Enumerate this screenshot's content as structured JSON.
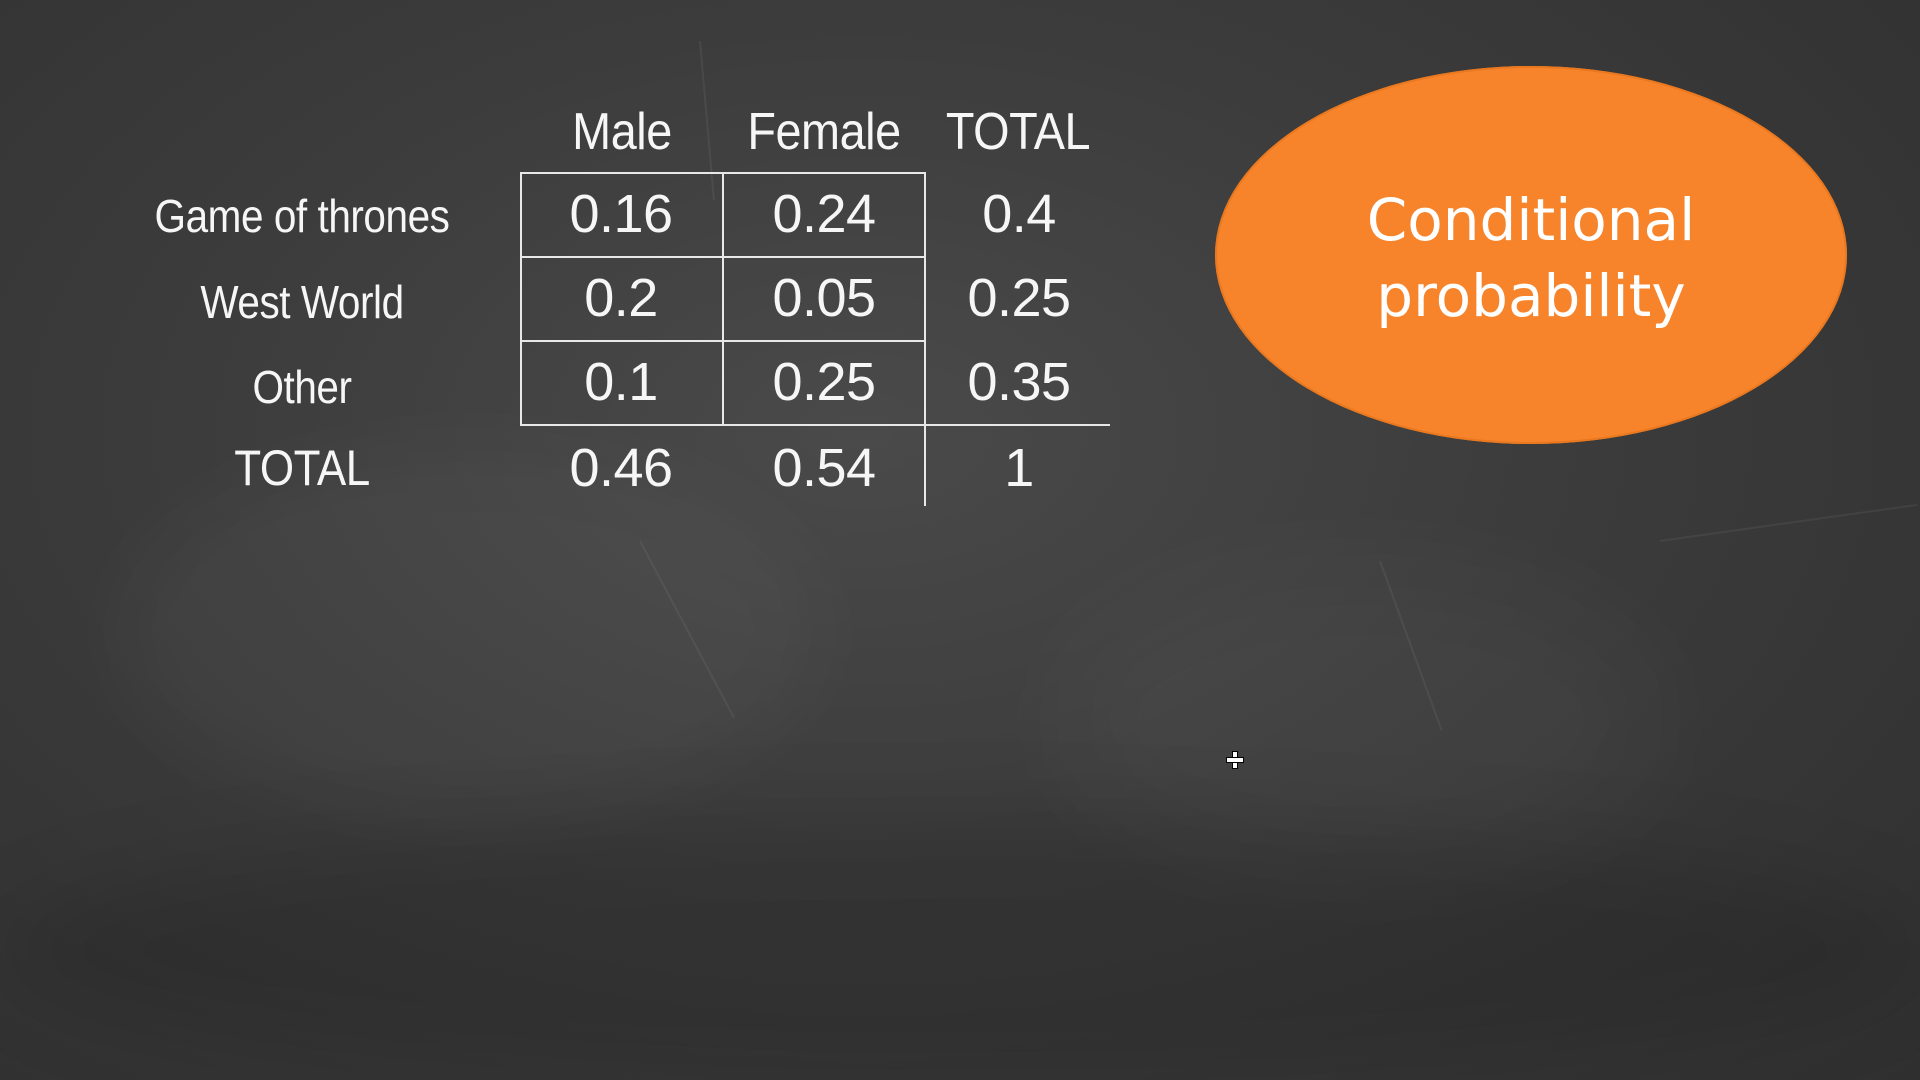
{
  "slide": {
    "bubble_title": "Conditional\nprobability",
    "bubble_color": "#f7842b",
    "background_color": "#3c3c3c"
  },
  "table": {
    "columns": [
      "Male",
      "Female",
      "TOTAL"
    ],
    "rows": [
      {
        "label": "Game of thrones",
        "values": [
          "0.16",
          "0.24",
          "0.4"
        ]
      },
      {
        "label": "West World",
        "values": [
          "0.2",
          "0.05",
          "0.25"
        ]
      },
      {
        "label": "Other",
        "values": [
          "0.1",
          "0.25",
          "0.35"
        ]
      },
      {
        "label": "TOTAL",
        "values": [
          "0.46",
          "0.54",
          "1"
        ]
      }
    ]
  }
}
